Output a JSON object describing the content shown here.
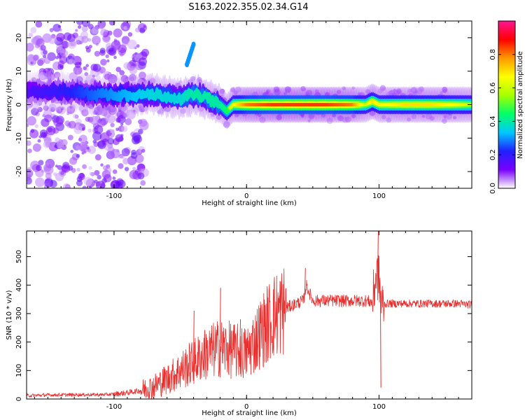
{
  "figure_title": "S163.2022.355.02.34.G14",
  "chart_data": [
    {
      "type": "heatmap",
      "xlabel": "Height of straight line (km)",
      "ylabel": "Frequency (Hz)",
      "xlim": [
        -166,
        170
      ],
      "ylim": [
        -25,
        25
      ],
      "xticks": [
        -100,
        0,
        100
      ],
      "xtick_labels": [
        "-100",
        "0",
        "100"
      ],
      "yticks": [
        -20,
        -10,
        0,
        10,
        20
      ],
      "ytick_labels": [
        "-20",
        "-10",
        "0",
        "10",
        "20"
      ],
      "grid": false,
      "colorbar": {
        "label": "Normalized spectral amplitude",
        "range": [
          0,
          1
        ],
        "ticks": [
          0.0,
          0.2,
          0.4,
          0.6,
          0.8
        ],
        "tick_labels": [
          "0.0",
          "0.2",
          "0.4",
          "0.6",
          "0.8"
        ],
        "colormap": [
          "#ffffff",
          "#7a00ff",
          "#2020ff",
          "#00c8ff",
          "#00ff66",
          "#a6ff00",
          "#ffff00",
          "#ff9900",
          "#ff0000",
          "#ff1493"
        ]
      },
      "ridge": {
        "x": [
          -166,
          -140,
          -110,
          -90,
          -70,
          -50,
          -40,
          -30,
          -20,
          -15,
          -10,
          0,
          20,
          40,
          60,
          80,
          90,
          95,
          100,
          120,
          140,
          160,
          170
        ],
        "frequency": [
          4,
          4,
          3,
          3,
          3,
          2,
          3,
          2,
          0,
          -2,
          0,
          0,
          0,
          0,
          0,
          0,
          0,
          1,
          0,
          0,
          0,
          0,
          0
        ],
        "amplitude": [
          0.2,
          0.25,
          0.35,
          0.4,
          0.45,
          0.45,
          0.5,
          0.5,
          0.5,
          0.55,
          0.65,
          0.8,
          0.85,
          0.85,
          0.85,
          0.8,
          0.6,
          0.7,
          0.65,
          0.7,
          0.7,
          0.65,
          0.6
        ]
      },
      "features": [
        {
          "x": [
            -45,
            -40
          ],
          "frequency": [
            12,
            18
          ],
          "amplitude": 0.3
        }
      ]
    },
    {
      "type": "line",
      "xlabel": "Height of straight line (km)",
      "ylabel": "SNR (10 * v/v)",
      "xlim": [
        -166,
        170
      ],
      "ylim": [
        0,
        590
      ],
      "xticks": [
        -100,
        0,
        100
      ],
      "xtick_labels": [
        "-100",
        "0",
        "100"
      ],
      "yticks": [
        0,
        100,
        200,
        300,
        400,
        500
      ],
      "ytick_labels": [
        "0",
        "100",
        "200",
        "300",
        "400",
        "500"
      ],
      "grid": false,
      "series": [
        {
          "color": "#e8302f",
          "x": [
            -166,
            -150,
            -130,
            -110,
            -100,
            -90,
            -80,
            -70,
            -60,
            -50,
            -40,
            -30,
            -20,
            -10,
            0,
            10,
            20,
            30,
            40,
            43,
            45,
            50,
            60,
            70,
            80,
            90,
            95,
            98,
            100,
            102,
            105,
            110,
            120,
            140,
            160,
            170
          ],
          "y": [
            12,
            14,
            15,
            15,
            17,
            22,
            30,
            45,
            70,
            100,
            130,
            160,
            180,
            170,
            160,
            230,
            290,
            320,
            340,
            345,
            400,
            345,
            345,
            345,
            345,
            345,
            340,
            440,
            420,
            330,
            335,
            335,
            335,
            335,
            335,
            330
          ]
        }
      ],
      "spikes": [
        {
          "x": -40,
          "y": 310
        },
        {
          "x": -32,
          "y": 240
        },
        {
          "x": -20,
          "y": 390
        },
        {
          "x": -5,
          "y": 280
        },
        {
          "x": 44,
          "y": 460
        },
        {
          "x": 99,
          "y": 590
        },
        {
          "x": 101,
          "y": 40
        }
      ]
    }
  ]
}
